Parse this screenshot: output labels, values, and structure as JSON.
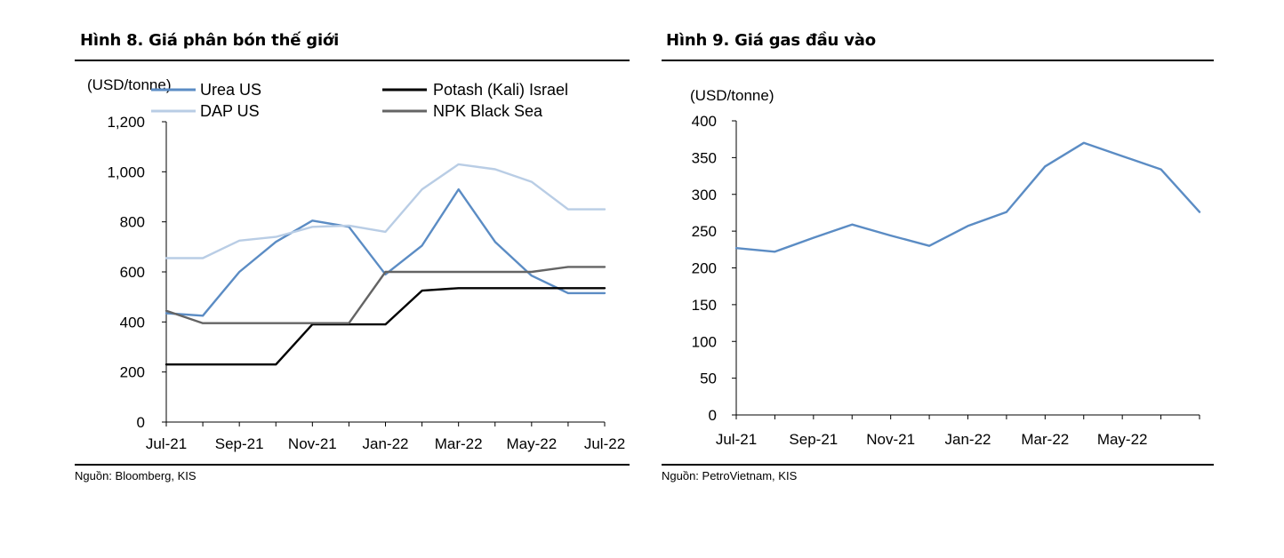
{
  "figures": [
    {
      "title": "Hình 8. Giá phân bón thế giới",
      "source": "Nguồn: Bloomberg, KIS"
    },
    {
      "title": "Hình 9. Giá gas đầu vào",
      "source": "Nguồn: PetroVietnam, KIS"
    }
  ],
  "chart_data": [
    {
      "type": "line",
      "title": "Hình 8. Giá phân bón thế giới",
      "ylabel": "(USD/tonne)",
      "ylim": [
        0,
        1200
      ],
      "yticks": [
        0,
        200,
        400,
        600,
        800,
        1000,
        1200
      ],
      "ytick_labels": [
        "0",
        "200",
        "400",
        "600",
        "800",
        "1,000",
        "1,200"
      ],
      "xtick_labels": [
        "Jul-21",
        "Sep-21",
        "Nov-21",
        "Jan-22",
        "Mar-22",
        "May-22",
        "Jul-22"
      ],
      "xtick_positions": [
        0,
        2,
        4,
        6,
        8,
        10,
        12
      ],
      "x": [
        "Jul-21",
        "Aug-21",
        "Sep-21",
        "Oct-21",
        "Nov-21",
        "Dec-21",
        "Jan-22",
        "Feb-22",
        "Mar-22",
        "Apr-22",
        "May-22",
        "Jun-22",
        "Jul-22"
      ],
      "series": [
        {
          "name": "Urea US",
          "color": "#5b8cc4",
          "values": [
            435,
            425,
            600,
            720,
            805,
            780,
            590,
            705,
            930,
            720,
            585,
            515,
            515
          ]
        },
        {
          "name": "DAP US",
          "color": "#b9cde5",
          "values": [
            655,
            655,
            725,
            740,
            780,
            785,
            760,
            930,
            1030,
            1010,
            960,
            850,
            850
          ]
        },
        {
          "name": "Potash (Kali) Israel",
          "color": "#000000",
          "values": [
            230,
            230,
            230,
            230,
            390,
            390,
            390,
            525,
            535,
            535,
            535,
            535,
            535
          ]
        },
        {
          "name": "NPK Black Sea",
          "color": "#646464",
          "values": [
            445,
            395,
            395,
            395,
            395,
            395,
            600,
            600,
            600,
            600,
            600,
            620,
            620
          ]
        }
      ]
    },
    {
      "type": "line",
      "title": "Hình 9. Giá gas đầu vào",
      "ylabel": "(USD/tonne)",
      "ylim": [
        0,
        400
      ],
      "yticks": [
        0,
        50,
        100,
        150,
        200,
        250,
        300,
        350,
        400
      ],
      "ytick_labels": [
        "0",
        "50",
        "100",
        "150",
        "200",
        "250",
        "300",
        "350",
        "400"
      ],
      "xtick_labels": [
        "Jul-21",
        "Sep-21",
        "Nov-21",
        "Jan-22",
        "Mar-22",
        "May-22"
      ],
      "xtick_positions": [
        0,
        2,
        4,
        6,
        8,
        10
      ],
      "x": [
        "Jul-21",
        "Aug-21",
        "Sep-21",
        "Oct-21",
        "Nov-21",
        "Dec-21",
        "Jan-22",
        "Feb-22",
        "Mar-22",
        "Apr-22",
        "May-22",
        "Jun-22",
        "Jul-22"
      ],
      "series": [
        {
          "name": "Gas",
          "color": "#5b8cc4",
          "values": [
            227,
            222,
            241,
            259,
            244,
            230,
            257,
            276,
            338,
            370,
            352,
            334,
            276
          ]
        }
      ]
    }
  ]
}
